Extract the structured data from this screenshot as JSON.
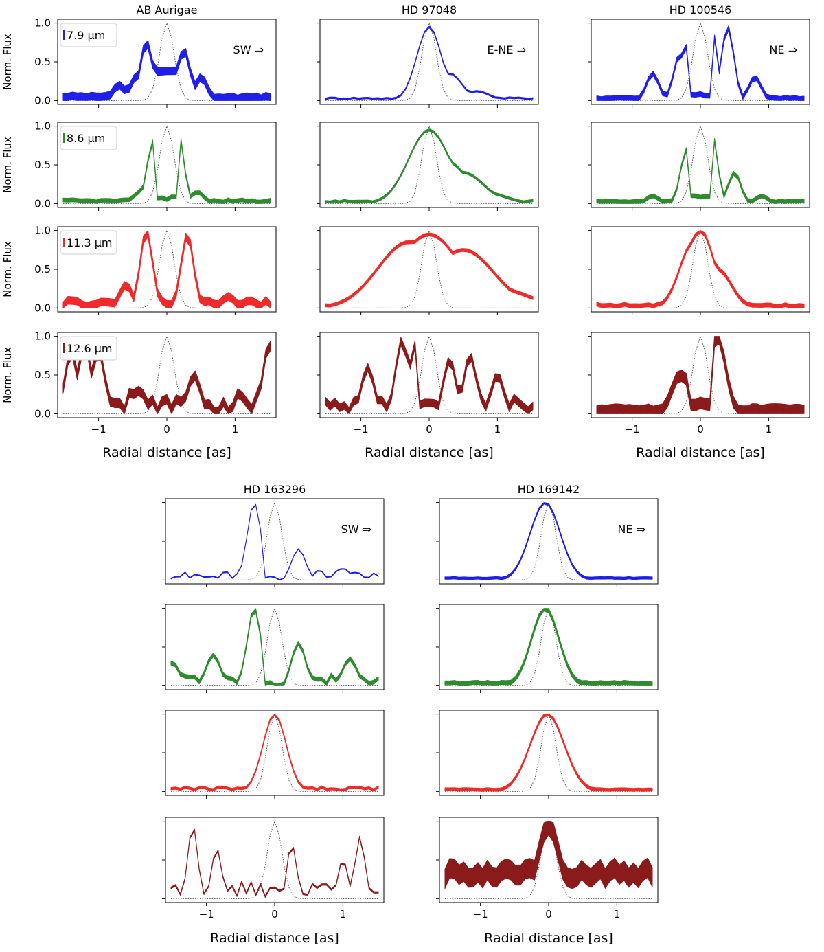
{
  "figure": {
    "xlabel": "Radial distance [as]",
    "ylabel": "Norm. Flux",
    "y_ticks": [
      "0.0",
      "0.5",
      "1.0"
    ],
    "x_ticks": [
      "−1",
      "0",
      "1"
    ]
  },
  "colors": {
    "7.9": "#1f1fe8",
    "8.6": "#2e8b2e",
    "11.3": "#f02a2a",
    "12.6": "#8b1a1a",
    "psf": "#555555"
  },
  "chart_data": [
    {
      "type": "line",
      "title": "AB Aurigae",
      "direction": "SW ⇒",
      "wavelengths": [
        "7.9 μm",
        "8.6 μm",
        "11.3 μm",
        "12.6 μm"
      ],
      "xlim": [
        -1.6,
        1.6
      ],
      "ylim": [
        -0.05,
        1.05
      ],
      "psf_fwhm_as": 0.25,
      "series": [
        {
          "name": "7.9 μm",
          "band": "7.9",
          "peaks": [
            [
              -0.7,
              0.2
            ],
            [
              -0.45,
              0.3
            ],
            [
              -0.3,
              0.75
            ],
            [
              -0.1,
              0.95
            ],
            [
              0.0,
              1.0
            ],
            [
              0.1,
              0.75
            ],
            [
              0.25,
              0.65
            ],
            [
              0.5,
              0.3
            ]
          ],
          "noise": 0.04,
          "dip": 0.35,
          "err": 0.1
        },
        {
          "name": "8.6 μm",
          "band": "8.6",
          "peaks": [
            [
              -0.4,
              0.15
            ],
            [
              -0.2,
              0.8
            ],
            [
              0.15,
              1.0
            ],
            [
              0.45,
              0.15
            ]
          ],
          "noise": 0.03,
          "dip": 0.05,
          "err": 0.05
        },
        {
          "name": "11.3 μm",
          "band": "11.3",
          "peaks": [
            [
              -0.6,
              0.3
            ],
            [
              -0.3,
              1.0
            ],
            [
              0.3,
              0.95
            ],
            [
              0.9,
              0.15
            ]
          ],
          "noise": 0.08,
          "dip": 0.2,
          "err": 0.1
        },
        {
          "name": "12.6 μm",
          "band": "12.6",
          "peaks": [
            [
              -1.4,
              0.8
            ],
            [
              -1.2,
              0.9
            ],
            [
              -1.0,
              0.8
            ],
            [
              -0.4,
              0.3
            ],
            [
              0.4,
              0.5
            ],
            [
              1.5,
              0.9
            ]
          ],
          "noise": 0.25,
          "dip": 0.15,
          "err": 0.12
        }
      ]
    },
    {
      "type": "line",
      "title": "HD 97048",
      "direction": "E-NE ⇒",
      "wavelengths": [],
      "xlim": [
        -1.6,
        1.6
      ],
      "ylim": [
        -0.05,
        1.05
      ],
      "psf_fwhm_as": 0.25,
      "series": [
        {
          "name": "7.9 μm",
          "band": "7.9",
          "peaks": [
            [
              0.0,
              0.95
            ],
            [
              0.3,
              0.35
            ],
            [
              0.7,
              0.12
            ]
          ],
          "width": 0.18,
          "noise": 0.02,
          "dip": 1,
          "err": 0.02
        },
        {
          "name": "8.6 μm",
          "band": "8.6",
          "peaks": [
            [
              0.0,
              0.95
            ],
            [
              0.25,
              0.55
            ],
            [
              0.5,
              0.4
            ],
            [
              0.8,
              0.15
            ]
          ],
          "width": 0.3,
          "noise": 0.02,
          "dip": 1,
          "err": 0.03
        },
        {
          "name": "11.3 μm",
          "band": "11.3",
          "peaks": [
            [
              -0.3,
              0.85
            ],
            [
              0.0,
              0.95
            ],
            [
              0.5,
              0.75
            ],
            [
              1.0,
              0.25
            ]
          ],
          "width": 0.45,
          "noise": 0.03,
          "dip": 1,
          "err": 0.04
        },
        {
          "name": "12.6 μm",
          "band": "12.6",
          "peaks": [
            [
              -0.9,
              0.6
            ],
            [
              -0.4,
              0.95
            ],
            [
              -0.2,
              0.9
            ],
            [
              0.3,
              0.7
            ],
            [
              0.6,
              0.75
            ],
            [
              1.0,
              0.5
            ]
          ],
          "noise": 0.2,
          "dip": 0.1,
          "err": 0.1
        }
      ]
    },
    {
      "type": "line",
      "title": "HD 100546",
      "direction": "NE ⇒",
      "wavelengths": [],
      "xlim": [
        -1.6,
        1.6
      ],
      "ylim": [
        -0.05,
        1.05
      ],
      "psf_fwhm_as": 0.25,
      "series": [
        {
          "name": "7.9 μm",
          "band": "7.9",
          "peaks": [
            [
              -0.7,
              0.35
            ],
            [
              -0.3,
              0.6
            ],
            [
              -0.15,
              0.85
            ],
            [
              0.15,
              1.0
            ],
            [
              0.4,
              0.95
            ],
            [
              0.8,
              0.3
            ]
          ],
          "noise": 0.02,
          "dip": 0.05,
          "err": 0.06
        },
        {
          "name": "8.6 μm",
          "band": "8.6",
          "peaks": [
            [
              -0.7,
              0.1
            ],
            [
              -0.2,
              0.7
            ],
            [
              0.15,
              1.0
            ],
            [
              0.5,
              0.4
            ],
            [
              0.9,
              0.1
            ]
          ],
          "noise": 0.02,
          "dip": 0.08,
          "err": 0.05
        },
        {
          "name": "11.3 μm",
          "band": "11.3",
          "peaks": [
            [
              -0.1,
              0.85
            ],
            [
              0.0,
              1.0
            ],
            [
              0.25,
              0.5
            ]
          ],
          "width": 0.2,
          "noise": 0.03,
          "dip": 1,
          "err": 0.05
        },
        {
          "name": "12.6 μm",
          "band": "12.6",
          "peaks": [
            [
              -0.3,
              0.5
            ],
            [
              -0.15,
              0.5
            ],
            [
              0.25,
              1.0
            ]
          ],
          "width": 0.12,
          "noise": 0.04,
          "dip": 0.1,
          "err": 0.15
        }
      ]
    },
    {
      "type": "line",
      "title": "HD 163296",
      "direction": "SW ⇒",
      "wavelengths": [],
      "xlim": [
        -1.6,
        1.6
      ],
      "ylim": [
        -0.05,
        1.05
      ],
      "psf_fwhm_as": 0.25,
      "series": [
        {
          "name": "7.9 μm",
          "band": "7.9",
          "peaks": [
            [
              -0.3,
              1.0
            ],
            [
              0.35,
              0.4
            ],
            [
              1.0,
              0.15
            ]
          ],
          "width": 0.1,
          "noise": 0.1,
          "dip": 0.0,
          "err": 0.01
        },
        {
          "name": "8.6 μm",
          "band": "8.6",
          "peaks": [
            [
              -0.3,
              1.0
            ],
            [
              -1.5,
              0.3
            ],
            [
              -0.9,
              0.4
            ],
            [
              0.35,
              0.55
            ],
            [
              1.1,
              0.35
            ]
          ],
          "width": 0.1,
          "noise": 0.12,
          "dip": 0.0,
          "err": 0.05
        },
        {
          "name": "11.3 μm",
          "band": "11.3",
          "peaks": [
            [
              0.0,
              1.0
            ]
          ],
          "width": 0.17,
          "noise": 0.04,
          "dip": 1,
          "err": 0.03
        },
        {
          "name": "12.6 μm",
          "band": "12.6",
          "peaks": [
            [
              -1.2,
              0.95
            ],
            [
              -0.85,
              0.65
            ],
            [
              0.25,
              0.7
            ],
            [
              1.0,
              0.5
            ],
            [
              1.25,
              0.8
            ]
          ],
          "width": 0.07,
          "noise": 0.2,
          "dip": 0.1,
          "err": 0.02
        }
      ]
    },
    {
      "type": "line",
      "title": "HD 169142",
      "direction": "NE ⇒",
      "wavelengths": [],
      "xlim": [
        -1.6,
        1.6
      ],
      "ylim": [
        -0.05,
        1.05
      ],
      "psf_fwhm_as": 0.25,
      "series": [
        {
          "name": "7.9 μm",
          "band": "7.9",
          "peaks": [
            [
              -0.05,
              1.0
            ]
          ],
          "width": 0.22,
          "noise": 0.01,
          "dip": 1,
          "err": 0.03
        },
        {
          "name": "8.6 μm",
          "band": "8.6",
          "peaks": [
            [
              -0.05,
              1.0
            ]
          ],
          "width": 0.2,
          "noise": 0.02,
          "dip": 1,
          "err": 0.06
        },
        {
          "name": "11.3 μm",
          "band": "11.3",
          "peaks": [
            [
              -0.02,
              1.0
            ]
          ],
          "width": 0.25,
          "noise": 0.01,
          "dip": 1,
          "err": 0.04
        },
        {
          "name": "12.6 μm",
          "band": "12.6",
          "peaks": [
            [
              0.0,
              0.95
            ],
            [
              -0.3,
              0.4
            ]
          ],
          "width": 0.15,
          "noise": 0.15,
          "dip": 1,
          "err": 0.25,
          "base": 0.25
        }
      ]
    }
  ]
}
